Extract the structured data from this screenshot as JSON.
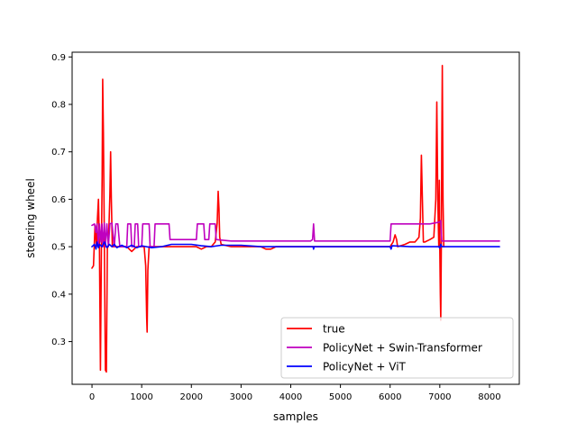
{
  "chart_data": {
    "type": "line",
    "title": "",
    "xlabel": "samples",
    "ylabel": "steering wheel",
    "xlim": [
      -400,
      8600
    ],
    "ylim": [
      0.21,
      0.91
    ],
    "xticks": [
      0,
      1000,
      2000,
      3000,
      4000,
      5000,
      6000,
      7000,
      8000
    ],
    "yticks": [
      0.3,
      0.4,
      0.5,
      0.6,
      0.7,
      0.8,
      0.9
    ],
    "grid": false,
    "legend_position": "lower right",
    "series": [
      {
        "name": "true",
        "color": "#ff0000",
        "points": [
          [
            0,
            0.455
          ],
          [
            30,
            0.46
          ],
          [
            60,
            0.545
          ],
          [
            90,
            0.5
          ],
          [
            110,
            0.56
          ],
          [
            130,
            0.6
          ],
          [
            150,
            0.5
          ],
          [
            170,
            0.24
          ],
          [
            190,
            0.5
          ],
          [
            205,
            0.65
          ],
          [
            215,
            0.853
          ],
          [
            230,
            0.74
          ],
          [
            250,
            0.5
          ],
          [
            270,
            0.24
          ],
          [
            290,
            0.236
          ],
          [
            310,
            0.5
          ],
          [
            330,
            0.5
          ],
          [
            360,
            0.61
          ],
          [
            375,
            0.7
          ],
          [
            390,
            0.6
          ],
          [
            410,
            0.5
          ],
          [
            500,
            0.5
          ],
          [
            600,
            0.5
          ],
          [
            700,
            0.5
          ],
          [
            800,
            0.49
          ],
          [
            900,
            0.5
          ],
          [
            1000,
            0.5
          ],
          [
            1050,
            0.5
          ],
          [
            1080,
            0.46
          ],
          [
            1100,
            0.35
          ],
          [
            1110,
            0.32
          ],
          [
            1125,
            0.45
          ],
          [
            1150,
            0.5
          ],
          [
            1300,
            0.5
          ],
          [
            1500,
            0.5
          ],
          [
            1700,
            0.5
          ],
          [
            1900,
            0.5
          ],
          [
            2100,
            0.5
          ],
          [
            2200,
            0.495
          ],
          [
            2300,
            0.5
          ],
          [
            2400,
            0.5
          ],
          [
            2480,
            0.51
          ],
          [
            2520,
            0.55
          ],
          [
            2540,
            0.617
          ],
          [
            2555,
            0.58
          ],
          [
            2570,
            0.52
          ],
          [
            2600,
            0.505
          ],
          [
            2800,
            0.5
          ],
          [
            3000,
            0.5
          ],
          [
            3400,
            0.5
          ],
          [
            3500,
            0.495
          ],
          [
            3600,
            0.495
          ],
          [
            3700,
            0.5
          ],
          [
            4000,
            0.5
          ],
          [
            4500,
            0.5
          ],
          [
            5000,
            0.5
          ],
          [
            5500,
            0.5
          ],
          [
            6000,
            0.5
          ],
          [
            6060,
            0.51
          ],
          [
            6100,
            0.525
          ],
          [
            6130,
            0.515
          ],
          [
            6150,
            0.5
          ],
          [
            6300,
            0.505
          ],
          [
            6400,
            0.51
          ],
          [
            6500,
            0.51
          ],
          [
            6580,
            0.52
          ],
          [
            6610,
            0.56
          ],
          [
            6630,
            0.693
          ],
          [
            6650,
            0.6
          ],
          [
            6670,
            0.51
          ],
          [
            6700,
            0.51
          ],
          [
            6800,
            0.515
          ],
          [
            6880,
            0.52
          ],
          [
            6920,
            0.6
          ],
          [
            6940,
            0.805
          ],
          [
            6960,
            0.6
          ],
          [
            6980,
            0.5
          ],
          [
            6990,
            0.64
          ],
          [
            7000,
            0.5
          ],
          [
            7010,
            0.4
          ],
          [
            7020,
            0.345
          ],
          [
            7030,
            0.5
          ],
          [
            7040,
            0.7
          ],
          [
            7050,
            0.882
          ],
          [
            7065,
            0.6
          ],
          [
            7080,
            0.5
          ]
        ]
      },
      {
        "name": "PolicyNet + Swin-Transformer",
        "color": "#bf00bf",
        "points": [
          [
            0,
            0.545
          ],
          [
            50,
            0.548
          ],
          [
            80,
            0.53
          ],
          [
            100,
            0.548
          ],
          [
            130,
            0.5
          ],
          [
            150,
            0.548
          ],
          [
            180,
            0.51
          ],
          [
            200,
            0.548
          ],
          [
            220,
            0.5
          ],
          [
            250,
            0.55
          ],
          [
            270,
            0.5
          ],
          [
            300,
            0.548
          ],
          [
            330,
            0.5
          ],
          [
            360,
            0.548
          ],
          [
            400,
            0.55
          ],
          [
            450,
            0.5
          ],
          [
            480,
            0.548
          ],
          [
            520,
            0.548
          ],
          [
            560,
            0.5
          ],
          [
            600,
            0.5
          ],
          [
            700,
            0.5
          ],
          [
            720,
            0.548
          ],
          [
            780,
            0.548
          ],
          [
            800,
            0.5
          ],
          [
            850,
            0.5
          ],
          [
            870,
            0.548
          ],
          [
            920,
            0.548
          ],
          [
            940,
            0.5
          ],
          [
            1000,
            0.5
          ],
          [
            1020,
            0.548
          ],
          [
            1150,
            0.548
          ],
          [
            1170,
            0.5
          ],
          [
            1250,
            0.5
          ],
          [
            1270,
            0.548
          ],
          [
            1550,
            0.548
          ],
          [
            1570,
            0.515
          ],
          [
            1800,
            0.515
          ],
          [
            2000,
            0.515
          ],
          [
            2100,
            0.515
          ],
          [
            2120,
            0.548
          ],
          [
            2250,
            0.548
          ],
          [
            2270,
            0.515
          ],
          [
            2350,
            0.515
          ],
          [
            2370,
            0.548
          ],
          [
            2480,
            0.548
          ],
          [
            2500,
            0.515
          ],
          [
            2800,
            0.512
          ],
          [
            3200,
            0.512
          ],
          [
            3600,
            0.512
          ],
          [
            4000,
            0.512
          ],
          [
            4400,
            0.512
          ],
          [
            4440,
            0.515
          ],
          [
            4460,
            0.548
          ],
          [
            4480,
            0.512
          ],
          [
            4900,
            0.512
          ],
          [
            5400,
            0.512
          ],
          [
            5900,
            0.512
          ],
          [
            6000,
            0.512
          ],
          [
            6020,
            0.548
          ],
          [
            6400,
            0.548
          ],
          [
            6800,
            0.548
          ],
          [
            7000,
            0.552
          ],
          [
            7020,
            0.555
          ],
          [
            7040,
            0.512
          ],
          [
            7500,
            0.512
          ],
          [
            8000,
            0.512
          ],
          [
            8200,
            0.512
          ]
        ]
      },
      {
        "name": "PolicyNet + ViT",
        "color": "#0000ff",
        "points": [
          [
            0,
            0.5
          ],
          [
            50,
            0.505
          ],
          [
            80,
            0.495
          ],
          [
            100,
            0.51
          ],
          [
            130,
            0.498
          ],
          [
            150,
            0.505
          ],
          [
            200,
            0.5
          ],
          [
            250,
            0.51
          ],
          [
            300,
            0.498
          ],
          [
            350,
            0.505
          ],
          [
            400,
            0.5
          ],
          [
            450,
            0.505
          ],
          [
            500,
            0.498
          ],
          [
            600,
            0.503
          ],
          [
            700,
            0.498
          ],
          [
            800,
            0.503
          ],
          [
            900,
            0.498
          ],
          [
            1000,
            0.502
          ],
          [
            1200,
            0.498
          ],
          [
            1400,
            0.5
          ],
          [
            1600,
            0.505
          ],
          [
            1800,
            0.505
          ],
          [
            2000,
            0.505
          ],
          [
            2200,
            0.502
          ],
          [
            2400,
            0.5
          ],
          [
            2600,
            0.503
          ],
          [
            3000,
            0.503
          ],
          [
            3400,
            0.5
          ],
          [
            3800,
            0.5
          ],
          [
            4200,
            0.5
          ],
          [
            4450,
            0.5
          ],
          [
            4460,
            0.495
          ],
          [
            4470,
            0.5
          ],
          [
            4800,
            0.5
          ],
          [
            5400,
            0.5
          ],
          [
            6000,
            0.5
          ],
          [
            6020,
            0.495
          ],
          [
            6040,
            0.502
          ],
          [
            6400,
            0.5
          ],
          [
            6800,
            0.5
          ],
          [
            6980,
            0.5
          ],
          [
            7000,
            0.497
          ],
          [
            7020,
            0.505
          ],
          [
            7040,
            0.5
          ],
          [
            7500,
            0.5
          ],
          [
            8000,
            0.5
          ],
          [
            8200,
            0.5
          ]
        ]
      }
    ]
  }
}
